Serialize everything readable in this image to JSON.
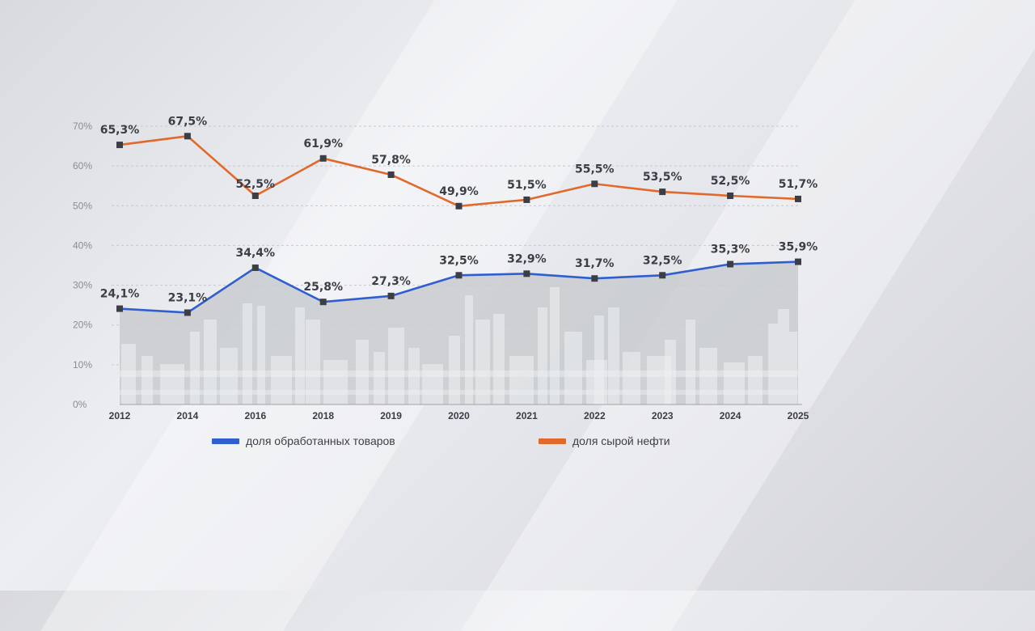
{
  "colors": {
    "manufactured": "#2f5fcf",
    "crude_oil": "#e2692c",
    "area_fill": "#c9cbcf",
    "grid": "#c6c8cc"
  },
  "chart_data": {
    "type": "line",
    "title": "",
    "xlabel": "",
    "ylabel": "",
    "categories": [
      "2012",
      "2014",
      "2016",
      "2018",
      "2019",
      "2020",
      "2021",
      "2022",
      "2023",
      "2024",
      "2025"
    ],
    "y_ticks": [
      "0%",
      "10%",
      "20%",
      "30%",
      "40%",
      "50%",
      "60%",
      "70%"
    ],
    "ylim": [
      0,
      70
    ],
    "grid": true,
    "legend_position": "bottom",
    "series": [
      {
        "key": "manufactured",
        "name": "доля обработанных товаров",
        "values": [
          24.1,
          23.1,
          34.4,
          25.8,
          27.3,
          32.5,
          32.9,
          31.7,
          32.5,
          35.3,
          35.9
        ],
        "labels": [
          "24,1%",
          "23,1%",
          "34,4%",
          "25,8%",
          "27,3%",
          "32,5%",
          "32,9%",
          "31,7%",
          "32,5%",
          "35,3%",
          "35,9%"
        ],
        "area_fill": true
      },
      {
        "key": "crude_oil",
        "name": "доля сырой нефти",
        "values": [
          65.3,
          67.5,
          52.5,
          61.9,
          57.8,
          49.9,
          51.5,
          55.5,
          53.5,
          52.5,
          51.7
        ],
        "labels": [
          "65,3%",
          "67,5%",
          "52,5%",
          "61,9%",
          "57,8%",
          "49,9%",
          "51,5%",
          "55,5%",
          "53,5%",
          "52,5%",
          "51,7%"
        ],
        "area_fill": false
      }
    ]
  }
}
